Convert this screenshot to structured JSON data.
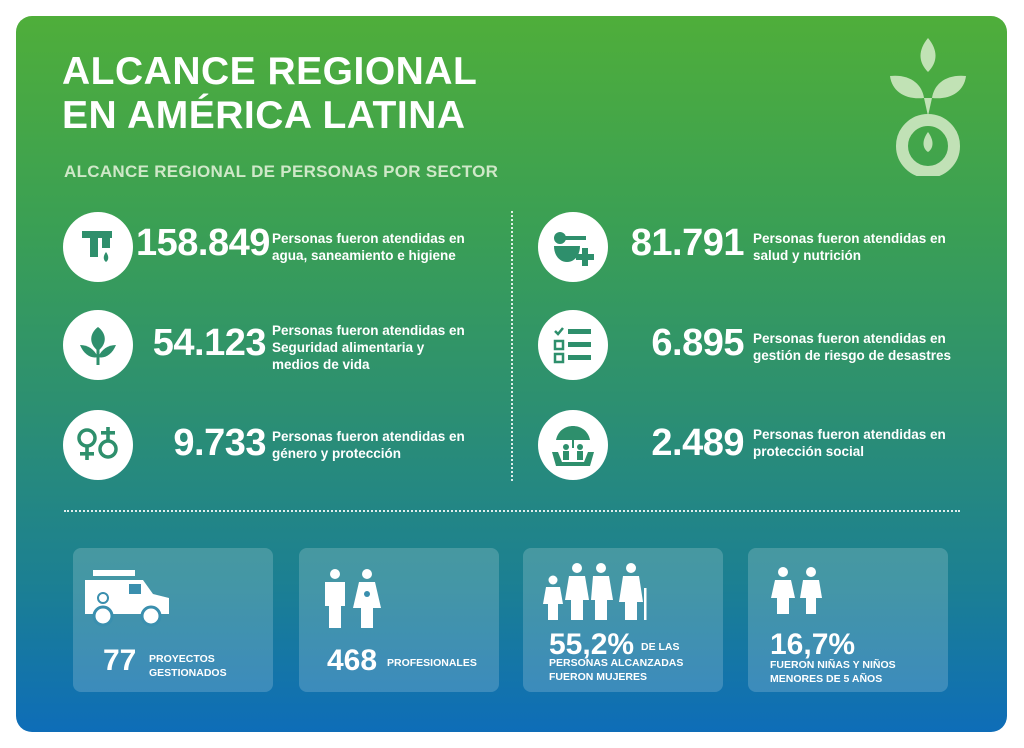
{
  "header": {
    "title": "ALCANCE REGIONAL\nEN AMÉRICA LATINA",
    "subtitle": "ALCANCE REGIONAL DE PERSONAS POR SECTOR"
  },
  "colors": {
    "card_top": "#4fae3a",
    "card_bottom": "#0e6db8",
    "icon_fill": "#2e8f6c"
  },
  "sectors": [
    {
      "icon": "water-tap-icon",
      "value": "158.849",
      "label": "Personas fueron atendidas en\nagua, saneamiento e higiene"
    },
    {
      "icon": "health-nutrition-icon",
      "value": "81.791",
      "label": "Personas fueron atendidas en\nsalud y nutrición"
    },
    {
      "icon": "plant-icon",
      "value": "54.123",
      "label": "Personas fueron atendidas  en\nSeguridad alimentaria y\nmedios de vida"
    },
    {
      "icon": "checklist-icon",
      "value": "6.895",
      "label": "Personas fueron atendidas en\ngestión de riesgo de desastres"
    },
    {
      "icon": "gender-icon",
      "value": "9.733",
      "label": "Personas fueron atendidas  en\ngénero y protección"
    },
    {
      "icon": "social-protection-icon",
      "value": "2.489",
      "label": "Personas fueron atendidas en\nprotección social"
    }
  ],
  "stats": [
    {
      "icon": "vehicle-icon",
      "value": "77",
      "label": "PROYECTOS\nGESTIONADOS"
    },
    {
      "icon": "professionals-icon",
      "value": "468",
      "label": "PROFESIONALES"
    },
    {
      "icon": "women-icon",
      "value": "55,2%",
      "suffix": "DE LAS",
      "label": "PERSONAS ALCANZADAS\nFUERON MUJERES"
    },
    {
      "icon": "children-icon",
      "value": "16,7%",
      "label": "FUERON NIÑAS Y NIÑOS\nMENORES DE 5 AÑOS"
    }
  ]
}
